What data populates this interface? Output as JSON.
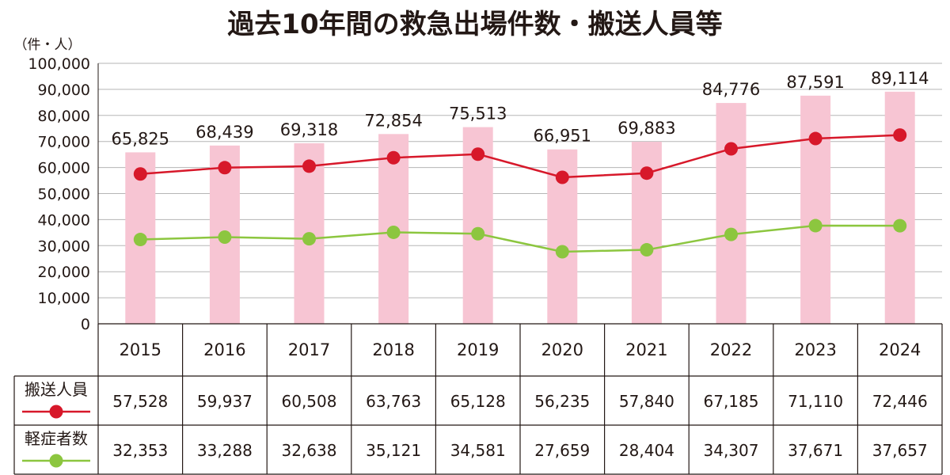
{
  "chart_data": {
    "type": "bar",
    "title": "過去10年間の救急出場件数・搬送人員等",
    "unit_label": "（件・人）",
    "categories": [
      "2015",
      "2016",
      "2017",
      "2018",
      "2019",
      "2020",
      "2021",
      "2022",
      "2023",
      "2024"
    ],
    "ylim": [
      0,
      100000
    ],
    "yticks": [
      0,
      10000,
      20000,
      30000,
      40000,
      50000,
      60000,
      70000,
      80000,
      90000,
      100000
    ],
    "ytick_labels": [
      "0",
      "10,000",
      "20,000",
      "30,000",
      "40,000",
      "50,000",
      "60,000",
      "70,000",
      "80,000",
      "90,000",
      "100,000"
    ],
    "grid": true,
    "bar_series": {
      "values": [
        65825,
        68439,
        69318,
        72854,
        75513,
        66951,
        69883,
        84776,
        87591,
        89114
      ],
      "labels": [
        "65,825",
        "68,439",
        "69,318",
        "72,854",
        "75,513",
        "66,951",
        "69,883",
        "84,776",
        "87,591",
        "89,114"
      ],
      "color": "#f7c5d3"
    },
    "line_series": [
      {
        "name": "搬送人員",
        "values": [
          57528,
          59937,
          60508,
          63763,
          65128,
          56235,
          57840,
          67185,
          71110,
          72446
        ],
        "labels": [
          "57,528",
          "59,937",
          "60,508",
          "63,763",
          "65,128",
          "56,235",
          "57,840",
          "67,185",
          "71,110",
          "72,446"
        ],
        "color": "#d7182a"
      },
      {
        "name": "軽症者数",
        "values": [
          32353,
          33288,
          32638,
          35121,
          34581,
          27659,
          28404,
          34307,
          37671,
          37657
        ],
        "labels": [
          "32,353",
          "33,288",
          "32,638",
          "35,121",
          "34,581",
          "27,659",
          "28,404",
          "34,307",
          "37,671",
          "37,657"
        ],
        "color": "#8cc63f"
      }
    ]
  }
}
